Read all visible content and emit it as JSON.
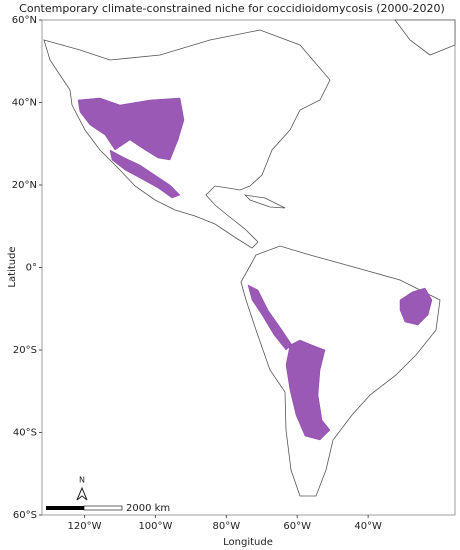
{
  "title": "Contemporary climate-constrained niche for coccidioidomycosis (2000-2020)",
  "map": {
    "xlabel": "Longitude",
    "ylabel": "Latitude",
    "xlim": [
      -132,
      -15.5
    ],
    "ylim": [
      -60,
      60
    ],
    "xticks": [
      {
        "value": -120,
        "label": "120°W"
      },
      {
        "value": -100,
        "label": "100°W"
      },
      {
        "value": -80,
        "label": "80°W"
      },
      {
        "value": -60,
        "label": "60°W"
      },
      {
        "value": -40,
        "label": "40°W"
      }
    ],
    "yticks": [
      {
        "value": 60,
        "label": "60°N"
      },
      {
        "value": 40,
        "label": "40°N"
      },
      {
        "value": 20,
        "label": "20°N"
      },
      {
        "value": 0,
        "label": "0°"
      },
      {
        "value": -20,
        "label": "20°S"
      },
      {
        "value": -40,
        "label": "40°S"
      },
      {
        "value": -60,
        "label": "60°S"
      }
    ]
  },
  "north_arrow": "N",
  "scale_bar": "2000 km"
}
